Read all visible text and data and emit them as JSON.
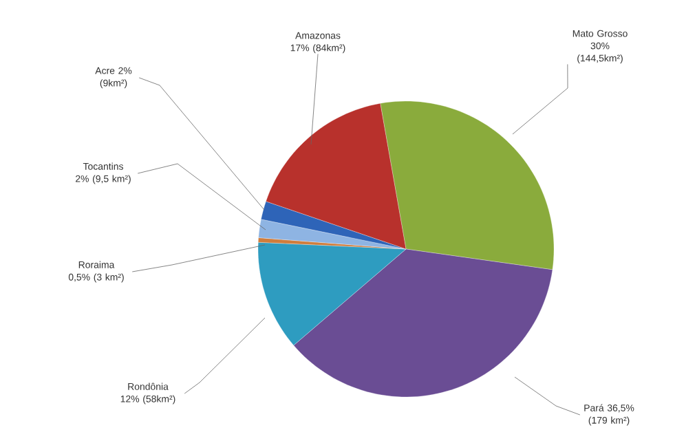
{
  "chart_data": {
    "type": "pie",
    "categories": [
      "Mato Grosso",
      "Pará",
      "Rondônia",
      "Roraima",
      "Tocantins",
      "Acre",
      "Amazonas"
    ],
    "values": [
      30,
      36.5,
      12,
      0.5,
      2,
      2,
      17
    ],
    "value_labels": [
      "30% (144,5km²)",
      "36,5% (179 km²)",
      "12% (58km²)",
      "0,5% (3 km²)",
      "2% (9,5 km²)",
      "2% (9km²)",
      "17% (84km²)"
    ],
    "colors": [
      "#8aab3c",
      "#6a4d94",
      "#2e9cc0",
      "#d07d3c",
      "#8eb4e3",
      "#2e64b8",
      "#b8312c"
    ]
  }
}
